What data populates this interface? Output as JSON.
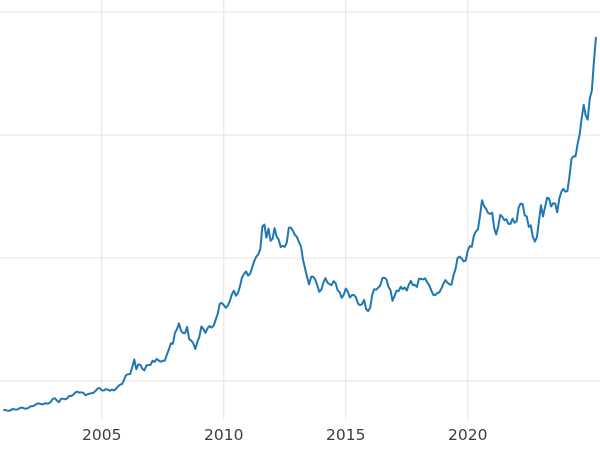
{
  "chart_data": {
    "type": "line",
    "title": "",
    "xlabel": "",
    "ylabel": "",
    "line_color": "#1f77b4",
    "line_width": 2,
    "grid_color": "#e4e4e4",
    "tick_color": "#3d3d3d",
    "background_color": "#ffffff",
    "xlim": [
      2000.83,
      2025.42
    ],
    "ylim": [
      183,
      3597
    ],
    "xticks": [
      2005,
      2010,
      2015,
      2020
    ],
    "xtick_labels": [
      "2005",
      "2010",
      "2015",
      "2020"
    ],
    "y_gridlines": [
      500,
      1500,
      2500,
      3500
    ],
    "grid": true,
    "legend": "none",
    "x_start": 2001.0,
    "x_step_years": 0.0833333,
    "values": [
      265,
      262,
      258,
      260,
      272,
      270,
      267,
      272,
      283,
      283,
      276,
      276,
      281,
      295,
      294,
      302,
      314,
      318,
      313,
      310,
      319,
      316,
      319,
      332,
      356,
      359,
      340,
      328,
      355,
      356,
      351,
      359,
      379,
      378,
      389,
      407,
      414,
      405,
      408,
      403,
      383,
      392,
      398,
      400,
      405,
      420,
      439,
      442,
      424,
      423,
      434,
      429,
      421,
      430,
      424,
      437,
      456,
      470,
      476,
      510,
      550,
      555,
      557,
      611,
      675,
      596,
      634,
      632,
      599,
      586,
      627,
      630,
      631,
      665,
      655,
      680,
      667,
      656,
      665,
      665,
      713,
      755,
      806,
      803,
      890,
      922,
      968,
      910,
      889,
      889,
      940,
      839,
      829,
      807,
      760,
      816,
      858,
      943,
      924,
      890,
      928,
      946,
      934,
      949,
      996,
      1043,
      1127,
      1135,
      1118,
      1095,
      1113,
      1149,
      1205,
      1233,
      1193,
      1216,
      1271,
      1342,
      1370,
      1391,
      1356,
      1373,
      1424,
      1474,
      1511,
      1529,
      1573,
      1756,
      1772,
      1666,
      1739,
      1640,
      1654,
      1742,
      1674,
      1650,
      1589,
      1598,
      1590,
      1627,
      1745,
      1747,
      1722,
      1688,
      1671,
      1628,
      1593,
      1486,
      1414,
      1343,
      1286,
      1348,
      1348,
      1324,
      1276,
      1225,
      1244,
      1301,
      1336,
      1299,
      1288,
      1279,
      1311,
      1296,
      1238,
      1222,
      1176,
      1201,
      1251,
      1227,
      1178,
      1198,
      1199,
      1181,
      1128,
      1117,
      1124,
      1159,
      1086,
      1068,
      1097,
      1199,
      1246,
      1242,
      1260,
      1276,
      1337,
      1340,
      1326,
      1266,
      1238,
      1152,
      1192,
      1234,
      1231,
      1266,
      1246,
      1260,
      1236,
      1283,
      1314,
      1279,
      1281,
      1264,
      1331,
      1330,
      1325,
      1334,
      1303,
      1281,
      1238,
      1201,
      1198,
      1215,
      1220,
      1250,
      1291,
      1320,
      1300,
      1285,
      1284,
      1359,
      1413,
      1500,
      1511,
      1495,
      1471,
      1479,
      1560,
      1597,
      1591,
      1683,
      1716,
      1732,
      1843,
      1969,
      1922,
      1900,
      1866,
      1858,
      1867,
      1742,
      1691,
      1760,
      1850,
      1835,
      1807,
      1814,
      1777,
      1777,
      1820,
      1787,
      1797,
      1909,
      1942,
      1937,
      1848,
      1837,
      1753,
      1766,
      1671,
      1633,
      1669,
      1797,
      1928,
      1837,
      1912,
      1990,
      1982,
      1919,
      1945,
      1942,
      1871,
      1983,
      2036,
      2062,
      2039,
      2044,
      2160,
      2307,
      2327,
      2326,
      2426,
      2503,
      2630,
      2744,
      2657,
      2625,
      2798,
      2858,
      3085,
      3290
    ]
  }
}
